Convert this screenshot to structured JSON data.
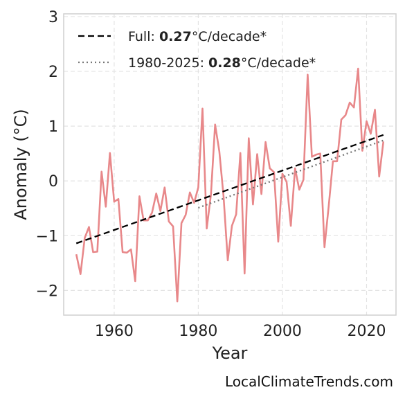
{
  "chart_data": {
    "type": "line",
    "title": "",
    "xlabel": "Year",
    "ylabel": "Anomaly (°C)",
    "xlim": [
      1948,
      2027
    ],
    "ylim": [
      -2.45,
      3.05
    ],
    "xticks": [
      1960,
      1980,
      2000,
      2020
    ],
    "yticks": [
      -2,
      -1,
      0,
      1,
      2,
      3
    ],
    "ytick_labels": [
      "−2",
      "−1",
      "0",
      "1",
      "2",
      "3"
    ],
    "grid": true,
    "legend_position": "top-left",
    "series": [
      {
        "color": "#e8888a",
        "x": [
          1951,
          1952,
          1953,
          1954,
          1955,
          1956,
          1957,
          1958,
          1959,
          1960,
          1961,
          1962,
          1963,
          1964,
          1965,
          1966,
          1967,
          1968,
          1969,
          1970,
          1971,
          1972,
          1973,
          1974,
          1975,
          1976,
          1977,
          1978,
          1979,
          1980,
          1981,
          1982,
          1983,
          1984,
          1985,
          1986,
          1987,
          1988,
          1989,
          1990,
          1991,
          1992,
          1993,
          1994,
          1995,
          1996,
          1997,
          1998,
          1999,
          2000,
          2001,
          2002,
          2003,
          2004,
          2005,
          2006,
          2007,
          2008,
          2009,
          2010,
          2011,
          2012,
          2013,
          2014,
          2015,
          2016,
          2017,
          2018,
          2019,
          2020,
          2021,
          2022,
          2023,
          2024
        ],
        "values": [
          -1.34,
          -1.7,
          -1.04,
          -0.84,
          -1.3,
          -1.29,
          0.17,
          -0.47,
          0.51,
          -0.38,
          -0.33,
          -1.3,
          -1.31,
          -1.25,
          -1.83,
          -0.28,
          -0.72,
          -0.72,
          -0.58,
          -0.23,
          -0.55,
          -0.12,
          -0.74,
          -0.83,
          -2.2,
          -0.77,
          -0.62,
          -0.21,
          -0.4,
          -0.12,
          1.32,
          -0.87,
          -0.25,
          1.03,
          0.54,
          -0.28,
          -1.45,
          -0.82,
          -0.61,
          0.51,
          -1.69,
          0.78,
          -0.43,
          0.49,
          -0.24,
          0.71,
          0.23,
          0.16,
          -1.11,
          0.13,
          -0.02,
          -0.82,
          0.23,
          -0.16,
          0.02,
          1.94,
          0.44,
          0.48,
          0.5,
          -1.21,
          -0.46,
          0.36,
          0.36,
          1.12,
          1.2,
          1.43,
          1.34,
          2.05,
          0.55,
          1.09,
          0.86,
          1.3,
          0.08,
          0.72
        ]
      }
    ],
    "trend_lines": [
      {
        "name_prefix": "Full: ",
        "name_value": "0.27",
        "name_suffix": "°C/decade*",
        "style": "dashed",
        "color": "#000000",
        "x": [
          1951,
          2024
        ],
        "values": [
          -1.14,
          0.84
        ]
      },
      {
        "name_prefix": "1980-2025: ",
        "name_value": "0.28",
        "name_suffix": "°C/decade*",
        "style": "dotted",
        "color": "#777777",
        "x": [
          1980,
          2024
        ],
        "values": [
          -0.49,
          0.74
        ]
      }
    ],
    "source": "LocalClimateTrends.com"
  }
}
